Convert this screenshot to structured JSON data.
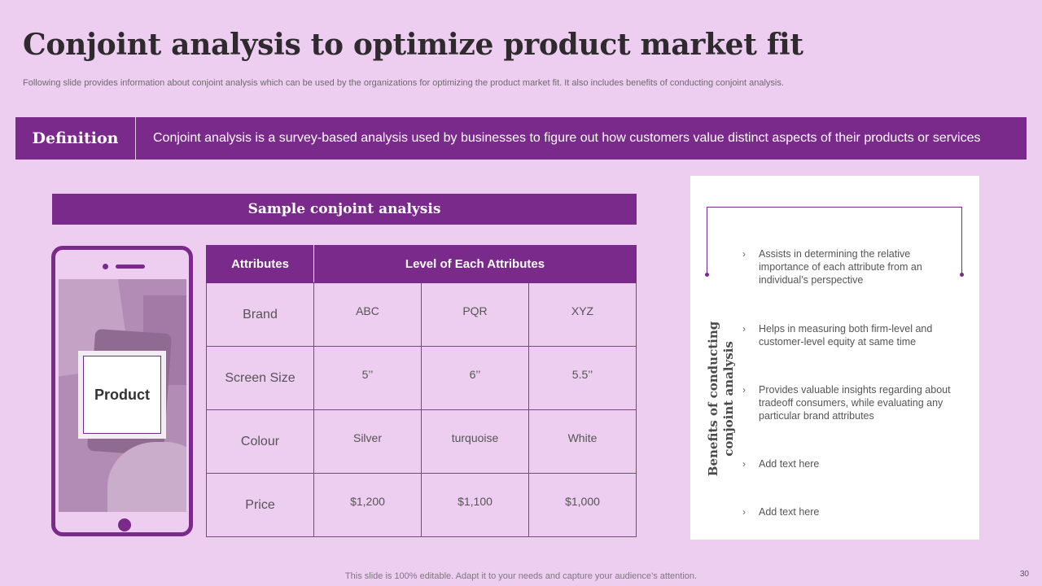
{
  "slide": {
    "title": "Conjoint analysis to optimize product market fit",
    "subtitle": "Following slide provides information about conjoint analysis which can be used by the organizations for optimizing the product market fit. It also includes benefits of conducting conjoint analysis.",
    "accent_color": "#7a2a8b",
    "background_color": "#edcdf0"
  },
  "definition": {
    "label": "Definition",
    "text": "Conjoint analysis is a survey-based analysis used by businesses to figure out how customers value distinct aspects of their products or services"
  },
  "sample": {
    "header": "Sample conjoint analysis",
    "product_label": "Product",
    "table": {
      "headers": [
        "Attributes",
        "Level of Each Attributes"
      ],
      "rows": [
        {
          "attribute": "Brand",
          "levels": [
            "ABC",
            "PQR",
            "XYZ"
          ]
        },
        {
          "attribute": "Screen Size",
          "levels": [
            "5’’",
            "6’’",
            "5.5’’"
          ]
        },
        {
          "attribute": "Colour",
          "levels": [
            "Silver",
            "turquoise",
            "White"
          ]
        },
        {
          "attribute": "Price",
          "levels": [
            "$1,200",
            "$1,100",
            "$1,000"
          ]
        }
      ]
    }
  },
  "benefits": {
    "title_line1": "Benefits of conducting",
    "title_line2": "conjoint analysis",
    "items": [
      "Assists in determining the relative importance of each attribute from an individual’s perspective",
      "Helps in measuring both firm-level and customer-level equity at same time",
      "Provides valuable insights regarding about tradeoff consumers, while evaluating any particular brand attributes",
      "Add text here",
      "Add text here"
    ]
  },
  "footer": {
    "text": "This slide is 100% editable. Adapt it to your needs and capture your audience’s attention.",
    "page_number": "30"
  }
}
